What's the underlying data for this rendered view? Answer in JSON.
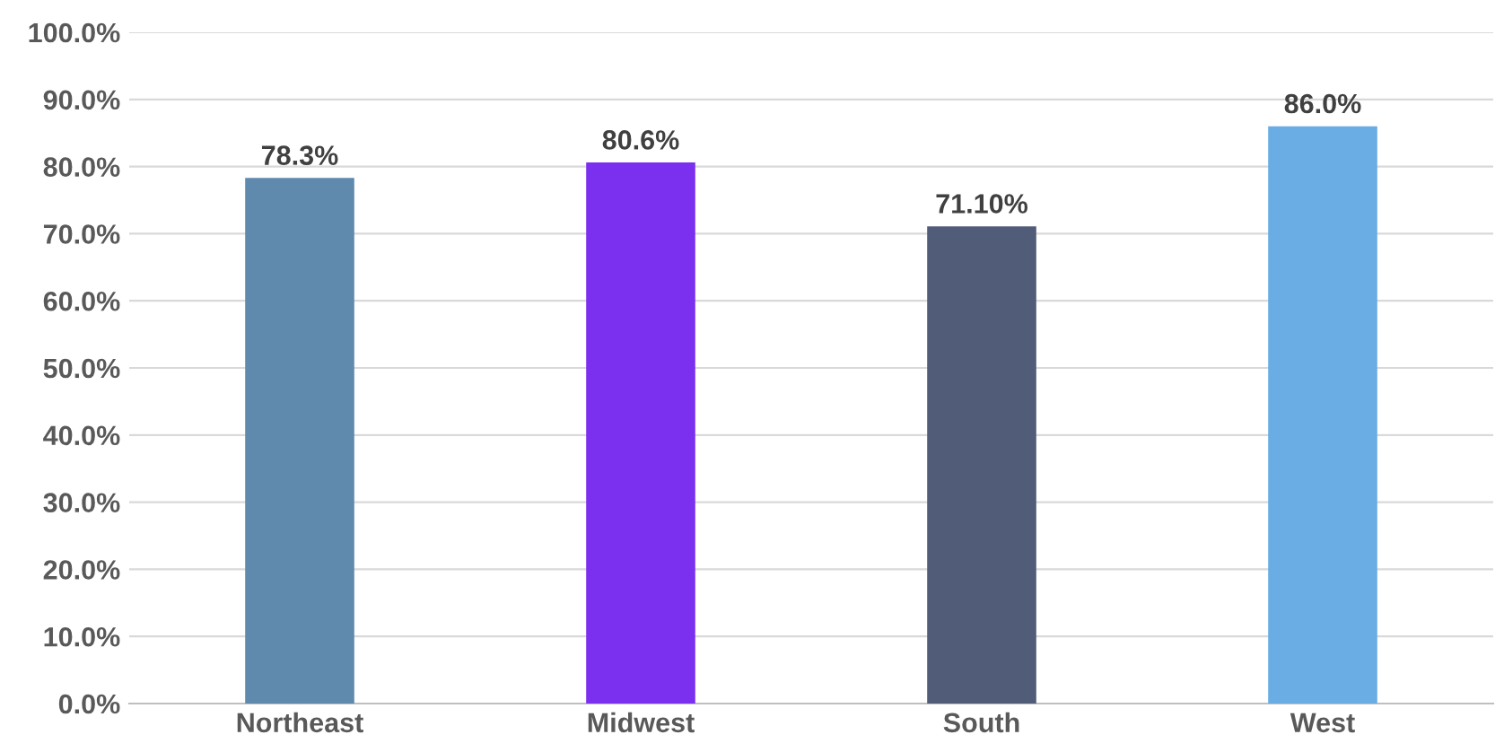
{
  "chart_data": {
    "type": "bar",
    "categories": [
      "Northeast",
      "Midwest",
      "South",
      "West"
    ],
    "values": [
      78.3,
      80.6,
      71.1,
      86.0
    ],
    "colors": [
      "#5f8aae",
      "#7b30f0",
      "#505c78",
      "#6aace4"
    ],
    "value_labels": [
      "78.3%",
      "80.6%",
      "71.10%",
      "86.0%"
    ],
    "ylim": [
      0,
      100
    ],
    "yticks": [
      {
        "value": 0,
        "label": "0.0%"
      },
      {
        "value": 10,
        "label": "10.0%"
      },
      {
        "value": 20,
        "label": "20.0%"
      },
      {
        "value": 30,
        "label": "30.0%"
      },
      {
        "value": 40,
        "label": "40.0%"
      },
      {
        "value": 50,
        "label": "50.0%"
      },
      {
        "value": 60,
        "label": "60.0%"
      },
      {
        "value": 70,
        "label": "70.0%"
      },
      {
        "value": 80,
        "label": "80.0%"
      },
      {
        "value": 90,
        "label": "90.0%"
      },
      {
        "value": 100,
        "label": "100.0%"
      }
    ],
    "grid": "y",
    "legend": false
  }
}
